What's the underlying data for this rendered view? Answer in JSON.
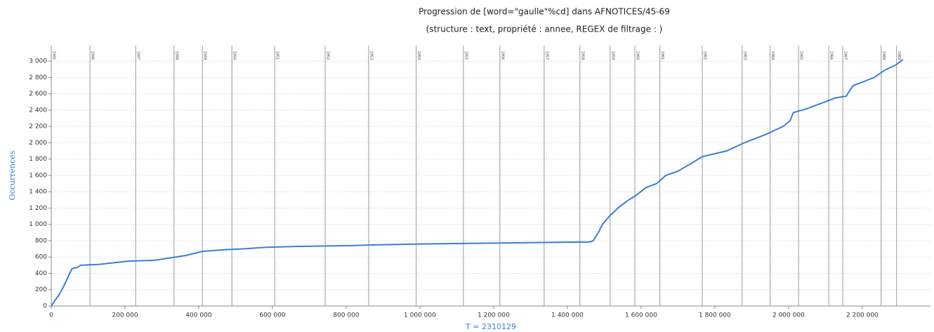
{
  "chart_data": {
    "type": "line",
    "title": "Progression de [word=\"gaulle\"%cd] dans AFNOTICES/45-69",
    "subtitle": "(structure :  text, propriété :  annee, REGEX de filtrage : )",
    "y_label": "Occurrences",
    "x_label": "T = 2310129",
    "color": "#3a7fd5",
    "grid": true,
    "x": [
      0,
      10000,
      20000,
      30000,
      40000,
      50000,
      57000,
      70000,
      80000,
      128000,
      210000,
      280000,
      337000,
      366000,
      410000,
      470000,
      518000,
      585000,
      661000,
      813000,
      890000,
      1004000,
      1194000,
      1366000,
      1461000,
      1470000,
      1484000,
      1495000,
      1514000,
      1537000,
      1566000,
      1585000,
      1613000,
      1642000,
      1667000,
      1699000,
      1737000,
      1766000,
      1832000,
      1880000,
      1937000,
      1985000,
      2004000,
      2013000,
      2051000,
      2099000,
      2128000,
      2156000,
      2175000,
      2204000,
      2232000,
      2261000,
      2290000,
      2310129
    ],
    "values": [
      0,
      70,
      130,
      210,
      300,
      400,
      460,
      470,
      500,
      510,
      550,
      560,
      600,
      620,
      670,
      690,
      700,
      720,
      730,
      740,
      750,
      760,
      770,
      780,
      785,
      800,
      900,
      1000,
      1100,
      1200,
      1300,
      1350,
      1450,
      1500,
      1600,
      1650,
      1750,
      1830,
      1900,
      2000,
      2100,
      2200,
      2270,
      2370,
      2420,
      2500,
      2550,
      2570,
      2700,
      2750,
      2800,
      2890,
      2950,
      3020
    ],
    "xlim": [
      0,
      2385000
    ],
    "ylim": [
      0,
      3190
    ],
    "xticks": [
      0,
      {
        "value": 200000,
        "label": "200 000"
      },
      {
        "value": 400000,
        "label": "400 000"
      },
      {
        "value": 600000,
        "label": "600 000"
      },
      {
        "value": 800000,
        "label": "800 000"
      },
      {
        "value": 1000000,
        "label": "1 000 000"
      },
      {
        "value": 1200000,
        "label": "1 200 000"
      },
      {
        "value": 1400000,
        "label": "1 400 000"
      },
      {
        "value": 1600000,
        "label": "1 600 000"
      },
      {
        "value": 1800000,
        "label": "1 800 000"
      },
      {
        "value": 2000000,
        "label": "2 000 000"
      },
      {
        "value": 2200000,
        "label": "2 200 000"
      }
    ],
    "yticks": [
      0,
      200,
      400,
      600,
      800,
      {
        "value": 1000,
        "label": "1 000"
      },
      {
        "value": 1200,
        "label": "1 200"
      },
      {
        "value": 1400,
        "label": "1 400"
      },
      {
        "value": 1600,
        "label": "1 600"
      },
      {
        "value": 1800,
        "label": "1 800"
      },
      {
        "value": 2000,
        "label": "2 000"
      },
      {
        "value": 2200,
        "label": "2 200"
      },
      {
        "value": 2400,
        "label": "2 400"
      },
      {
        "value": 2600,
        "label": "2 600"
      },
      {
        "value": 2800,
        "label": "2 800"
      },
      {
        "value": 3000,
        "label": "3 000"
      }
    ],
    "markers": [
      {
        "x": 0,
        "label": "1945"
      },
      {
        "x": 105000,
        "label": "1946"
      },
      {
        "x": 229000,
        "label": "1947"
      },
      {
        "x": 333000,
        "label": "1948"
      },
      {
        "x": 410000,
        "label": "1949"
      },
      {
        "x": 490000,
        "label": "1950"
      },
      {
        "x": 606000,
        "label": "1951"
      },
      {
        "x": 743000,
        "label": "1952"
      },
      {
        "x": 861000,
        "label": "1953"
      },
      {
        "x": 990000,
        "label": "1954"
      },
      {
        "x": 1118000,
        "label": "1955"
      },
      {
        "x": 1217000,
        "label": "1956"
      },
      {
        "x": 1337000,
        "label": "1957"
      },
      {
        "x": 1434000,
        "label": "1958"
      },
      {
        "x": 1516000,
        "label": "1959"
      },
      {
        "x": 1583000,
        "label": "1960"
      },
      {
        "x": 1651000,
        "label": "1961"
      },
      {
        "x": 1766000,
        "label": "1962"
      },
      {
        "x": 1874000,
        "label": "1963"
      },
      {
        "x": 1950000,
        "label": "1964"
      },
      {
        "x": 2027000,
        "label": "1965"
      },
      {
        "x": 2109000,
        "label": "1966"
      },
      {
        "x": 2147000,
        "label": "1967"
      },
      {
        "x": 2251000,
        "label": "1968"
      },
      {
        "x": 2293000,
        "label": "1969"
      }
    ]
  }
}
